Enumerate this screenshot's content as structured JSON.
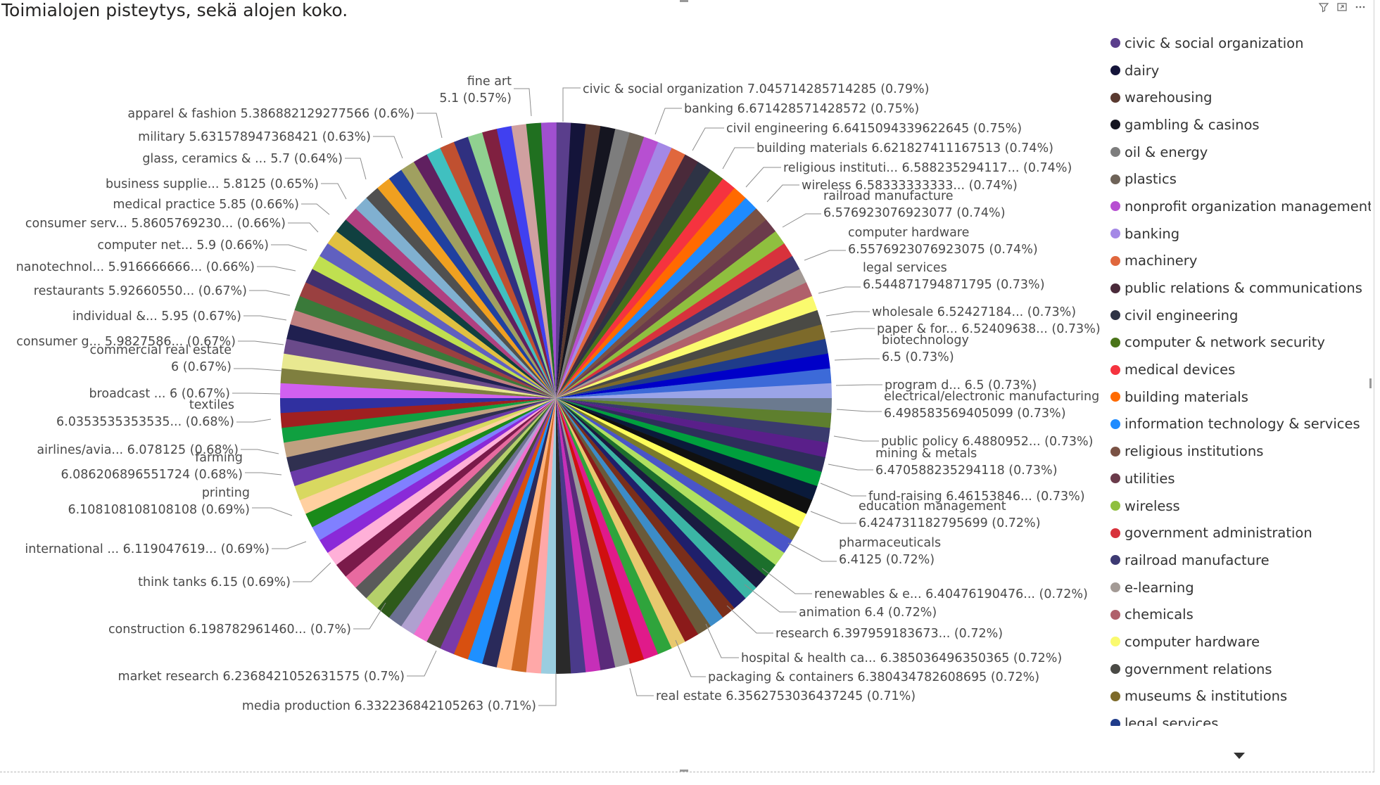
{
  "title": "Toimialojen pisteytys, sekä alojen koko.",
  "toolbar": {
    "filter_icon": "filter-icon",
    "focus_icon": "focus-mode-icon",
    "more_icon": "more-options-icon"
  },
  "legend": {
    "items": [
      {
        "label": "civic & social organization",
        "color": "#5a3e8c"
      },
      {
        "label": "dairy",
        "color": "#14143a"
      },
      {
        "label": "warehousing",
        "color": "#5a3a30"
      },
      {
        "label": "gambling & casinos",
        "color": "#151520"
      },
      {
        "label": "oil & energy",
        "color": "#7d7d7d"
      },
      {
        "label": "plastics",
        "color": "#6e6358"
      },
      {
        "label": "nonprofit organization management",
        "color": "#b74fd1"
      },
      {
        "label": "banking",
        "color": "#a488e6"
      },
      {
        "label": "machinery",
        "color": "#e0673d"
      },
      {
        "label": "public relations & communications",
        "color": "#4a2a3a"
      },
      {
        "label": "civil engineering",
        "color": "#2e3345"
      },
      {
        "label": "computer & network security",
        "color": "#4a7419"
      },
      {
        "label": "medical devices",
        "color": "#f5333f"
      },
      {
        "label": "building materials",
        "color": "#ff6a00"
      },
      {
        "label": "information technology & services",
        "color": "#1e8bff"
      },
      {
        "label": "religious institutions",
        "color": "#7a5244"
      },
      {
        "label": "utilities",
        "color": "#6b3b4b"
      },
      {
        "label": "wireless",
        "color": "#8fbf3f"
      },
      {
        "label": "government administration",
        "color": "#d8323c"
      },
      {
        "label": "railroad manufacture",
        "color": "#3d3a73"
      },
      {
        "label": "e-learning",
        "color": "#a39a95"
      },
      {
        "label": "chemicals",
        "color": "#b0606b"
      },
      {
        "label": "computer hardware",
        "color": "#fafa6e"
      },
      {
        "label": "government relations",
        "color": "#4a4a45"
      },
      {
        "label": "museums & institutions",
        "color": "#7d6a2a"
      },
      {
        "label": "legal services",
        "color": "#1f3c8a"
      }
    ]
  },
  "chart_data": {
    "type": "pie",
    "title": "Toimialojen pisteytys, sekä alojen koko.",
    "labeled_slices": [
      {
        "text": "civic & social organization 7.045714285714285 (0.79%)",
        "value": 7.045714285714285,
        "percent": 0.79
      },
      {
        "text": "banking 6.671428571428572 (0.75%)",
        "value": 6.671428571428572,
        "percent": 0.75
      },
      {
        "text": "civil engineering 6.6415094339622645 (0.75%)",
        "value": 6.6415094339622645,
        "percent": 0.75
      },
      {
        "text": "building materials 6.621827411167513 (0.74%)",
        "value": 6.621827411167513,
        "percent": 0.74
      },
      {
        "text": "religious instituti... 6.588235294117... (0.74%)",
        "value": 6.588235294117,
        "percent": 0.74
      },
      {
        "text": "wireless 6.58333333333... (0.74%)",
        "value": 6.58333333333,
        "percent": 0.74
      },
      {
        "text": "railroad manufacture|6.576923076923077 (0.74%)",
        "value": 6.576923076923077,
        "percent": 0.74
      },
      {
        "text": "computer hardware|6.5576923076923075 (0.74%)",
        "value": 6.5576923076923075,
        "percent": 0.74
      },
      {
        "text": "legal services|6.544871794871795 (0.73%)",
        "value": 6.544871794871795,
        "percent": 0.73
      },
      {
        "text": "wholesale 6.52427184... (0.73%)",
        "value": 6.52427184,
        "percent": 0.73
      },
      {
        "text": "paper & for... 6.52409638... (0.73%)",
        "value": 6.52409638,
        "percent": 0.73
      },
      {
        "text": "biotechnology|6.5 (0.73%)",
        "value": 6.5,
        "percent": 0.73
      },
      {
        "text": "program d... 6.5 (0.73%)",
        "value": 6.5,
        "percent": 0.73
      },
      {
        "text": "electrical/electronic manufacturing|6.498583569405099 (0.73%)",
        "value": 6.498583569405099,
        "percent": 0.73
      },
      {
        "text": "public policy 6.4880952... (0.73%)",
        "value": 6.4880952,
        "percent": 0.73
      },
      {
        "text": "mining & metals|6.470588235294118 (0.73%)",
        "value": 6.470588235294118,
        "percent": 0.73
      },
      {
        "text": "fund-raising 6.46153846... (0.73%)",
        "value": 6.46153846,
        "percent": 0.73
      },
      {
        "text": "education management|6.424731182795699 (0.72%)",
        "value": 6.424731182795699,
        "percent": 0.72
      },
      {
        "text": "pharmaceuticals|6.4125 (0.72%)",
        "value": 6.4125,
        "percent": 0.72
      },
      {
        "text": "renewables & e... 6.40476190476... (0.72%)",
        "value": 6.40476190476,
        "percent": 0.72
      },
      {
        "text": "animation 6.4 (0.72%)",
        "value": 6.4,
        "percent": 0.72
      },
      {
        "text": "research 6.397959183673... (0.72%)",
        "value": 6.397959183673,
        "percent": 0.72
      },
      {
        "text": "hospital & health ca... 6.385036496350365 (0.72%)",
        "value": 6.385036496350365,
        "percent": 0.72
      },
      {
        "text": "packaging & containers 6.380434782608695 (0.72%)",
        "value": 6.380434782608695,
        "percent": 0.72
      },
      {
        "text": "real estate 6.3562753036437245 (0.71%)",
        "value": 6.3562753036437245,
        "percent": 0.71
      },
      {
        "text": "media production 6.332236842105263 (0.71%)",
        "value": 6.332236842105263,
        "percent": 0.71
      },
      {
        "text": "market research 6.2368421052631575 (0.7%)",
        "value": 6.2368421052631575,
        "percent": 0.7
      },
      {
        "text": "construction 6.198782961460... (0.7%)",
        "value": 6.19878296146,
        "percent": 0.7
      },
      {
        "text": "think tanks 6.15 (0.69%)",
        "value": 6.15,
        "percent": 0.69
      },
      {
        "text": "international ... 6.119047619... (0.69%)",
        "value": 6.119047619,
        "percent": 0.69
      },
      {
        "text": "printing|6.108108108108108 (0.69%)",
        "value": 6.108108108108108,
        "percent": 0.69
      },
      {
        "text": "farming|6.086206896551724 (0.68%)",
        "value": 6.086206896551724,
        "percent": 0.68
      },
      {
        "text": "airlines/avia... 6.078125 (0.68%)",
        "value": 6.078125,
        "percent": 0.68
      },
      {
        "text": "textiles|6.0353535353535... (0.68%)",
        "value": 6.0353535353535,
        "percent": 0.68
      },
      {
        "text": "broadcast ... 6 (0.67%)",
        "value": 6,
        "percent": 0.67
      },
      {
        "text": "commercial real estate|6 (0.67%)",
        "value": 6,
        "percent": 0.67
      },
      {
        "text": "consumer g... 5.9827586... (0.67%)",
        "value": 5.9827586,
        "percent": 0.67
      },
      {
        "text": "individual &... 5.95 (0.67%)",
        "value": 5.95,
        "percent": 0.67
      },
      {
        "text": "restaurants 5.92660550... (0.67%)",
        "value": 5.9266055,
        "percent": 0.67
      },
      {
        "text": "nanotechnol... 5.916666666... (0.66%)",
        "value": 5.916666666,
        "percent": 0.66
      },
      {
        "text": "computer net... 5.9 (0.66%)",
        "value": 5.9,
        "percent": 0.66
      },
      {
        "text": "consumer serv... 5.8605769230... (0.66%)",
        "value": 5.860576923,
        "percent": 0.66
      },
      {
        "text": "medical practice 5.85 (0.66%)",
        "value": 5.85,
        "percent": 0.66
      },
      {
        "text": "business supplie... 5.8125 (0.65%)",
        "value": 5.8125,
        "percent": 0.65
      },
      {
        "text": "glass, ceramics & ... 5.7 (0.64%)",
        "value": 5.7,
        "percent": 0.64
      },
      {
        "text": "military 5.631578947368421 (0.63%)",
        "value": 5.631578947368421,
        "percent": 0.63
      },
      {
        "text": "apparel & fashion 5.386882129277566 (0.6%)",
        "value": 5.386882129277566,
        "percent": 0.6
      },
      {
        "text": "fine art|5.1 (0.57%)",
        "value": 5.1,
        "percent": 0.57
      }
    ],
    "slice_colors": [
      "#5a3e8c",
      "#14143a",
      "#5a3a30",
      "#151520",
      "#7d7d7d",
      "#6e6358",
      "#b74fd1",
      "#a488e6",
      "#e0673d",
      "#4a2a3a",
      "#2e3345",
      "#4a7419",
      "#f5333f",
      "#ff6a00",
      "#1e8bff",
      "#7a5244",
      "#6b3b4b",
      "#8fbf3f",
      "#d8323c",
      "#3d3a73",
      "#a39a95",
      "#b0606b",
      "#fafa6e",
      "#4a4a45",
      "#7d6a2a",
      "#1f3c8a",
      "#0000c8",
      "#3c6ad8",
      "#9aa4e8",
      "#6b7a8f",
      "#5e7f2e",
      "#3a3a6e",
      "#5a1f8a",
      "#2e2e5a",
      "#009f3d",
      "#0a1a3a",
      "#101010",
      "#fdfd5a",
      "#7a7a2a",
      "#4a55c8",
      "#b0e060",
      "#1c6f2c",
      "#1a1a40",
      "#3bb5a5",
      "#1f1f6b",
      "#7a2e1a",
      "#3c8cc8",
      "#6a5a3a",
      "#8b1a1a",
      "#e8c86e",
      "#2fa43c",
      "#e01a8a",
      "#d01010",
      "#9a9a9a",
      "#5a2a7a",
      "#c62fb8",
      "#4a3a8a",
      "#2a2a2a",
      "#9acde0",
      "#ffa8a8",
      "#cf6a24",
      "#ffb07a",
      "#2a2a5a",
      "#1e90ff",
      "#d85010",
      "#7a3aa8",
      "#4a4a3a",
      "#f070d0",
      "#b0a0d0",
      "#6a7090",
      "#2e5a1a",
      "#b5d06a",
      "#5a5a5a",
      "#e86aa0",
      "#7a1a4a",
      "#ffb0d8",
      "#8a2ad8",
      "#8080ff",
      "#1a8a1a",
      "#ffd0a0",
      "#d8d860",
      "#6a3aa8",
      "#303050",
      "#c0a080",
      "#10a040",
      "#a02020",
      "#3030a0",
      "#d060f0",
      "#7f7f3f",
      "#e8e890",
      "#6a4a8a",
      "#202050",
      "#c08080",
      "#3a7a3a",
      "#9a4040",
      "#403070",
      "#c0e050",
      "#6060c0",
      "#e0c040",
      "#104040",
      "#b04080",
      "#80b0d0",
      "#505050",
      "#f0a020",
      "#2040a0",
      "#a0a060",
      "#602060",
      "#40c0c0",
      "#c05030",
      "#303080",
      "#90d090",
      "#802040",
      "#4040f0",
      "#d0a0a0",
      "#207020",
      "#a050d0"
    ]
  }
}
